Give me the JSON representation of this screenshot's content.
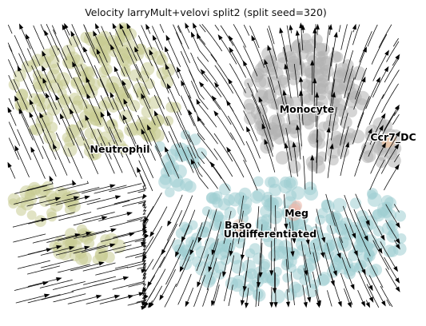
{
  "chart_data": {
    "type": "scatter",
    "title": "Velocity larryMult+velovi split2 (split seed=320)",
    "xlabel": "",
    "ylabel": "",
    "axes_visible": false,
    "grid": false,
    "legend": "on-data",
    "overlay": "velocity streamlines with arrows",
    "clusters": [
      {
        "name": "Neutrophil",
        "color": "#c8cc94",
        "label_x": 150,
        "label_y": 191
      },
      {
        "name": "Monocyte",
        "color": "#b3b3b3",
        "label_x": 384,
        "label_y": 141
      },
      {
        "name": "Ccr7_DC",
        "color": "#f4c9a6",
        "label_x": 492,
        "label_y": 176
      },
      {
        "name": "Meg",
        "color": "#f0b6a8",
        "label_x": 371,
        "label_y": 271
      },
      {
        "name": "Baso",
        "color": "#e6c6b4",
        "label_x": 298,
        "label_y": 286
      },
      {
        "name": "Undifferentiated",
        "color": "#9ecdd2",
        "label_x": 338,
        "label_y": 297
      }
    ]
  }
}
